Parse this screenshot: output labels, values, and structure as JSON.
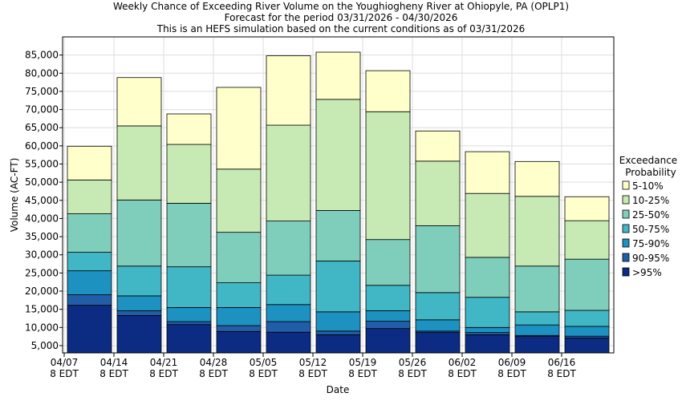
{
  "chart_data": {
    "type": "bar",
    "stacked": true,
    "title": [
      "Weekly Chance of Exceeding River Volume on the Youghiogheny River at Ohiopyle, PA (OPLP1)",
      "Forecast for the period 03/31/2026 - 04/30/2026",
      "This is an HEFS simulation based on the current conditions as of 03/31/2026"
    ],
    "xlabel": "Date",
    "ylabel": "Volume (AC-FT)",
    "ylim": [
      3000,
      90000
    ],
    "yticks": [
      5000,
      10000,
      15000,
      20000,
      25000,
      30000,
      35000,
      40000,
      45000,
      50000,
      55000,
      60000,
      65000,
      70000,
      75000,
      80000,
      85000
    ],
    "ytick_labels": [
      "5,000",
      "10,000",
      "15,000",
      "20,000",
      "25,000",
      "30,000",
      "35,000",
      "40,000",
      "45,000",
      "50,000",
      "55,000",
      "60,000",
      "65,000",
      "70,000",
      "75,000",
      "80,000",
      "85,000"
    ],
    "xtick_labels": [
      [
        "04/07",
        "8 EDT"
      ],
      [
        "04/14",
        "8 EDT"
      ],
      [
        "04/21",
        "8 EDT"
      ],
      [
        "04/28",
        "8 EDT"
      ],
      [
        "05/05",
        "8 EDT"
      ],
      [
        "05/12",
        "8 EDT"
      ],
      [
        "05/19",
        "8 EDT"
      ],
      [
        "05/26",
        "8 EDT"
      ],
      [
        "06/02",
        "8 EDT"
      ],
      [
        "06/09",
        "8 EDT"
      ],
      [
        "06/16",
        "8 EDT"
      ]
    ],
    "grid": true,
    "legend": {
      "title": [
        "Exceedance",
        "Probability"
      ],
      "position": "right",
      "entries": [
        {
          "label": "5-10%",
          "color": "#ffffcc"
        },
        {
          "label": "10-25%",
          "color": "#c7e9b4"
        },
        {
          "label": "25-50%",
          "color": "#7fcdbb"
        },
        {
          "label": "50-75%",
          "color": "#41b6c4"
        },
        {
          "label": "75-90%",
          "color": "#1d91c0"
        },
        {
          "label": "90-95%",
          "color": "#225ea8"
        },
        {
          "label": ">95%",
          "color": "#0c2c84"
        }
      ]
    },
    "bars": [
      [
        16100,
        19000,
        25600,
        30700,
        41300,
        50600,
        59900
      ],
      [
        13300,
        14600,
        18700,
        26900,
        45100,
        65500,
        78800
      ],
      [
        10800,
        11600,
        15500,
        26700,
        44200,
        60400,
        68800
      ],
      [
        8900,
        10500,
        15500,
        22300,
        36200,
        53600,
        76100
      ],
      [
        8700,
        11600,
        16300,
        24400,
        39300,
        65700,
        84800
      ],
      [
        8000,
        9000,
        14300,
        28300,
        42200,
        72800,
        85800
      ],
      [
        9700,
        11700,
        14600,
        21600,
        34200,
        69400,
        80700
      ],
      [
        8600,
        9000,
        12100,
        19600,
        38000,
        55800,
        64100
      ],
      [
        8000,
        8600,
        10000,
        18300,
        29300,
        46900,
        58400
      ],
      [
        7500,
        7800,
        10700,
        14300,
        26900,
        46100,
        55700
      ],
      [
        7100,
        7600,
        10300,
        14700,
        28800,
        39400,
        46000
      ]
    ]
  }
}
